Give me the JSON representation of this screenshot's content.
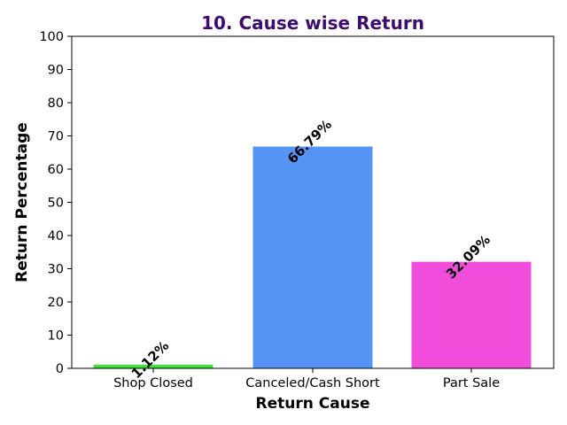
{
  "chart_data": {
    "type": "bar",
    "title": "10. Cause wise Return",
    "xlabel": "Return Cause",
    "ylabel": "Return Percentage",
    "categories": [
      "Shop Closed",
      "Canceled/Cash Short",
      "Part Sale"
    ],
    "values": [
      1.12,
      66.79,
      32.09
    ],
    "data_labels": [
      "1.12%",
      "66.79%",
      "32.09%"
    ],
    "bar_colors": [
      "#3ee43a",
      "#5594f5",
      "#f14ddb"
    ],
    "title_color": "#3d0c6e",
    "ylim": [
      0,
      100
    ],
    "yticks": [
      0,
      10,
      20,
      30,
      40,
      50,
      60,
      70,
      80,
      90,
      100
    ],
    "grid": false,
    "legend": "none"
  }
}
